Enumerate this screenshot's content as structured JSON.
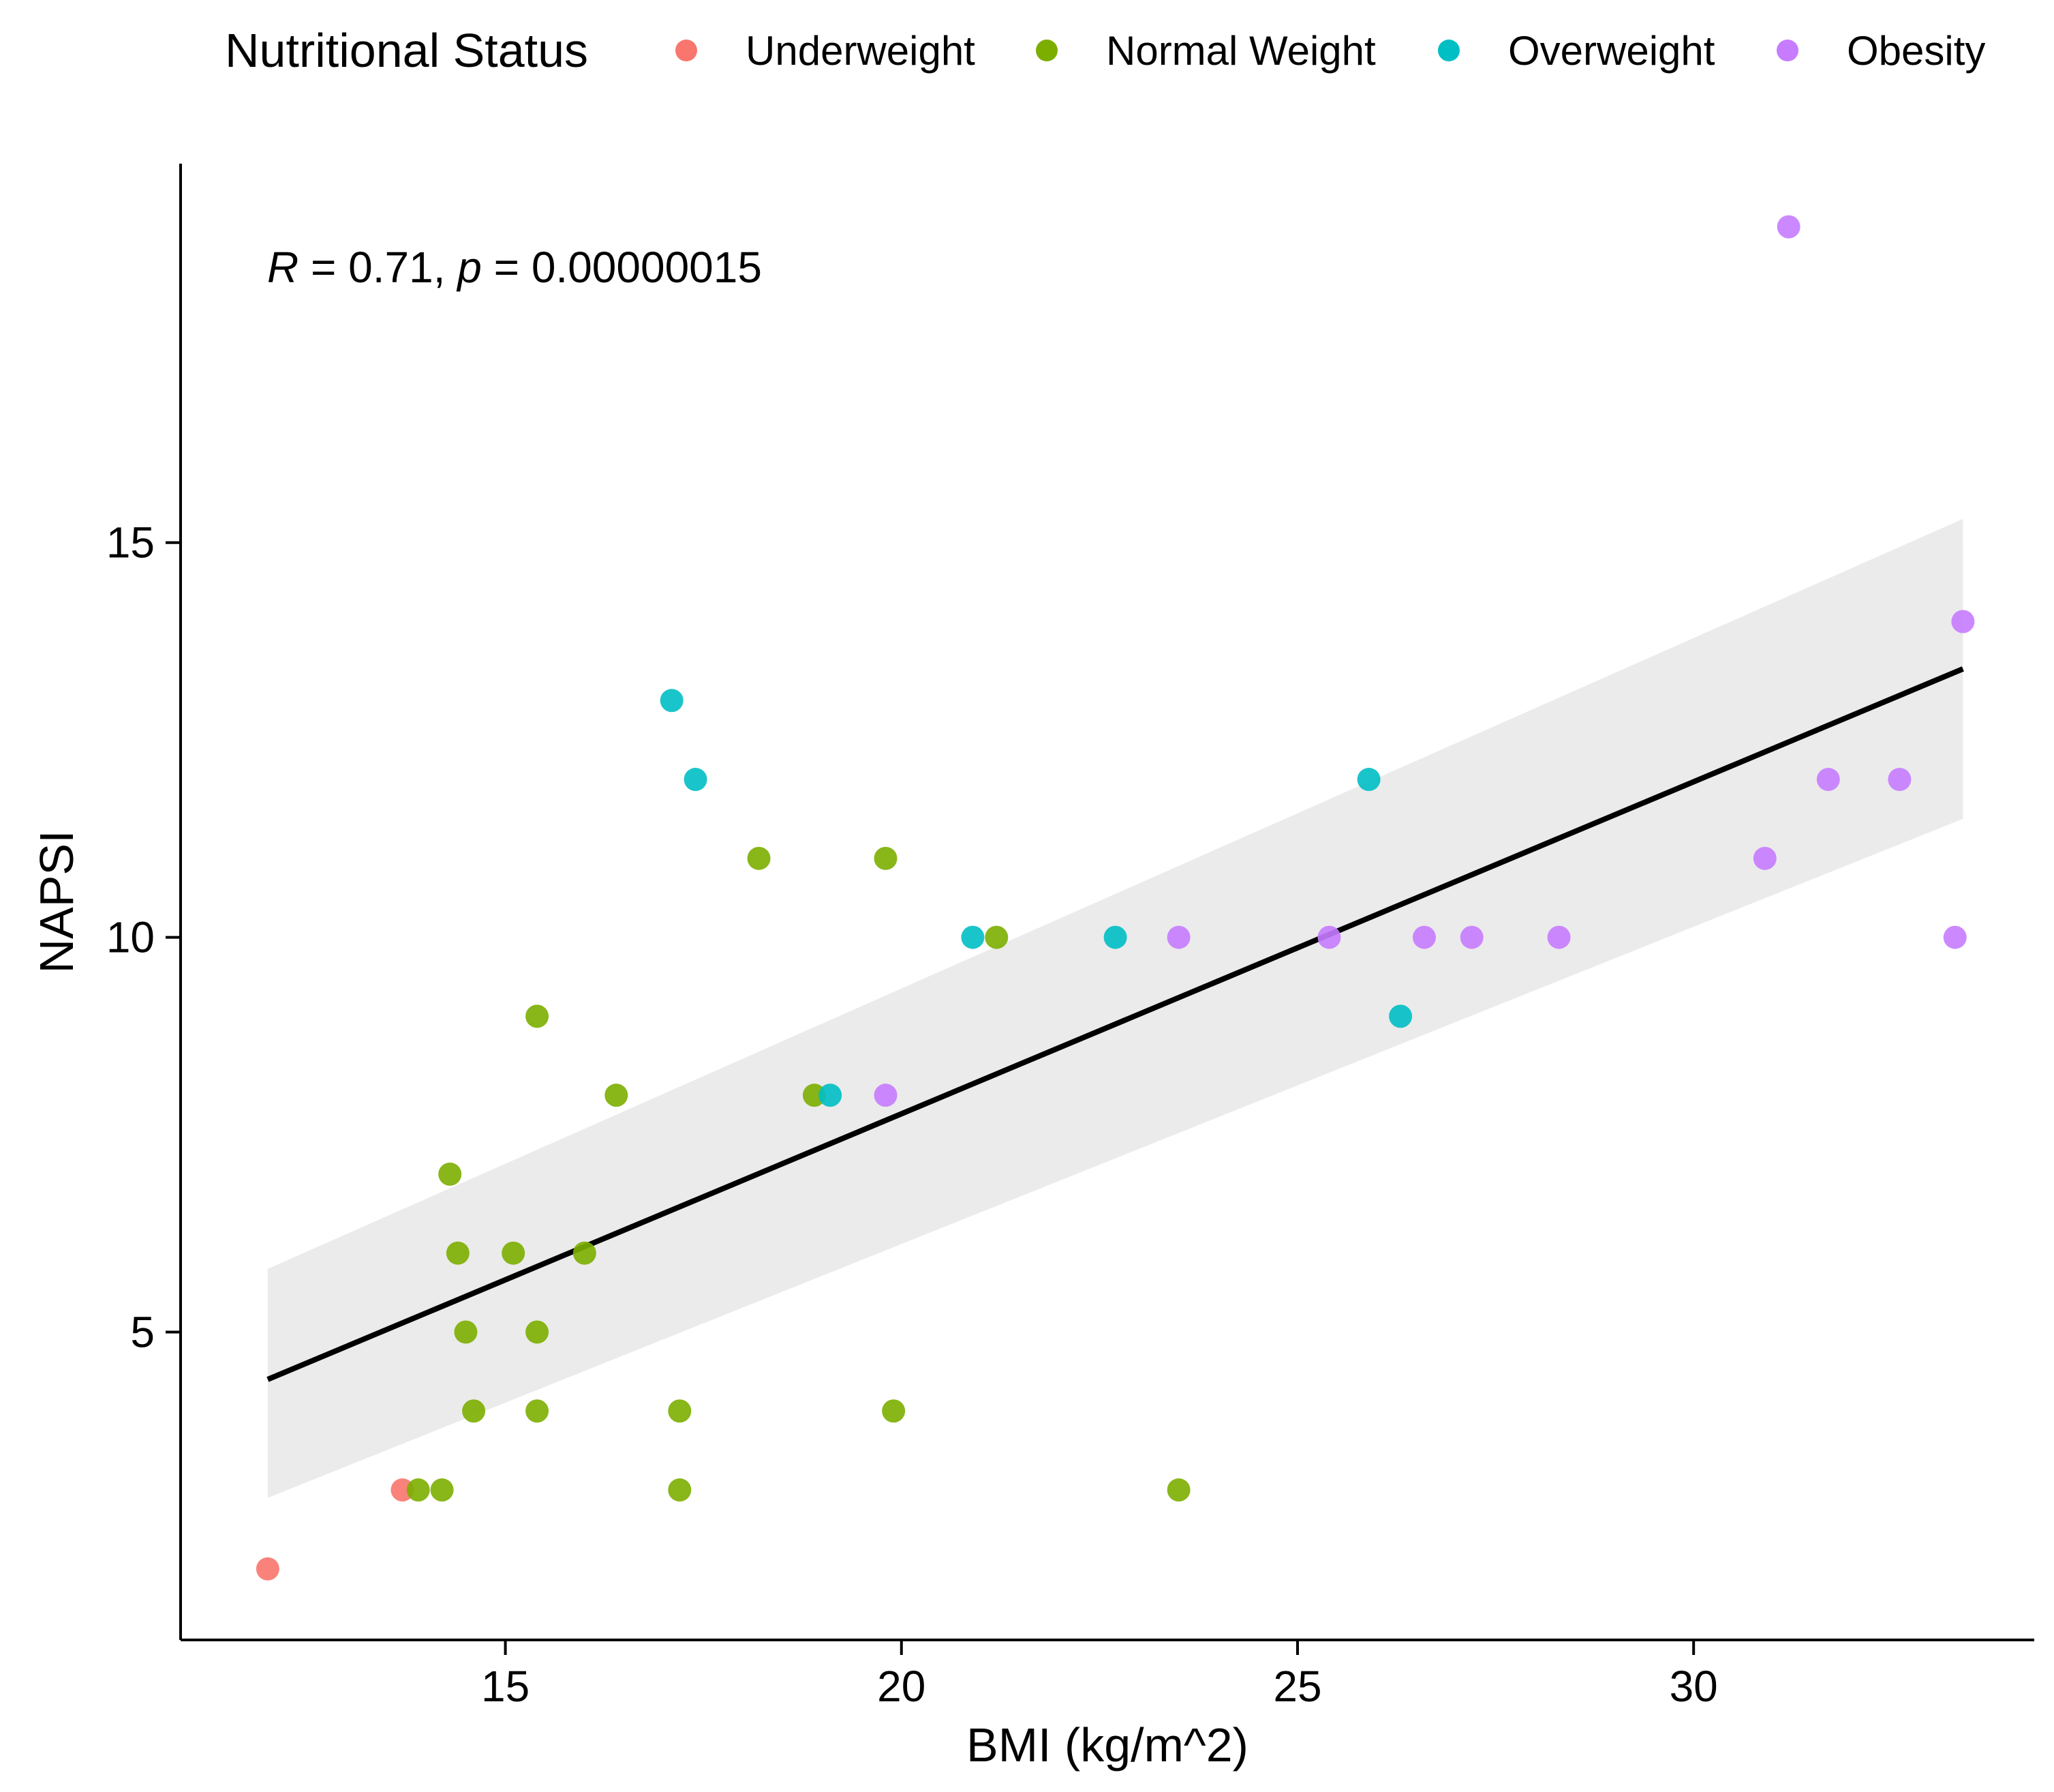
{
  "chart_data": {
    "type": "scatter",
    "xlabel": "BMI (kg/m^2)",
    "ylabel": "NAPSI",
    "xlim": [
      10.9,
      34.3
    ],
    "ylim": [
      1.1,
      19.8
    ],
    "x_ticks": [
      15,
      20,
      25,
      30
    ],
    "y_ticks": [
      5,
      10,
      15
    ],
    "x_tick_labels": [
      "15",
      "20",
      "25",
      "30"
    ],
    "y_tick_labels": [
      "5",
      "10",
      "15"
    ],
    "legend": {
      "title": "Nutritional Status",
      "placement": "top"
    },
    "annotation": {
      "r_label": "R",
      "r_text": " = 0.71, ",
      "p_label": "p",
      "p_text": " = 0.00000015"
    },
    "series": [
      {
        "name": "Underweight",
        "color": "#F8766D",
        "x": [
          12.0,
          13.7
        ],
        "y": [
          2,
          3
        ]
      },
      {
        "name": "Normal Weight",
        "color": "#7CAE00",
        "x": [
          13.9,
          14.2,
          14.3,
          14.4,
          14.5,
          14.6,
          15.1,
          15.4,
          15.4,
          15.4,
          16.0,
          16.4,
          17.2,
          17.2,
          18.2,
          18.9,
          19.8,
          19.9,
          21.2,
          23.5
        ],
        "y": [
          3,
          3,
          7,
          6,
          5,
          4,
          6,
          9,
          5,
          4,
          6,
          8,
          4,
          3,
          11,
          8,
          11,
          4,
          10,
          3
        ]
      },
      {
        "name": "Overweight",
        "color": "#00BFC4",
        "x": [
          17.1,
          17.4,
          19.1,
          20.9,
          22.7,
          25.9,
          26.3
        ],
        "y": [
          13,
          12,
          8,
          10,
          10,
          12,
          9
        ]
      },
      {
        "name": "Obesity",
        "color": "#C77CFF",
        "x": [
          19.8,
          23.5,
          25.4,
          26.6,
          27.2,
          28.3,
          30.9,
          31.2,
          31.7,
          32.6,
          33.3,
          33.4
        ],
        "y": [
          8,
          10,
          10,
          10,
          10,
          10,
          11,
          19,
          12,
          12,
          10,
          14
        ]
      }
    ],
    "regression": {
      "x": [
        12.0,
        33.4
      ],
      "y": [
        4.4,
        13.4
      ],
      "ci_lower": [
        2.9,
        11.5
      ],
      "ci_upper": [
        5.8,
        15.3
      ],
      "line_color": "#000000",
      "band_color": "#EBEBEB"
    },
    "grid": false
  }
}
